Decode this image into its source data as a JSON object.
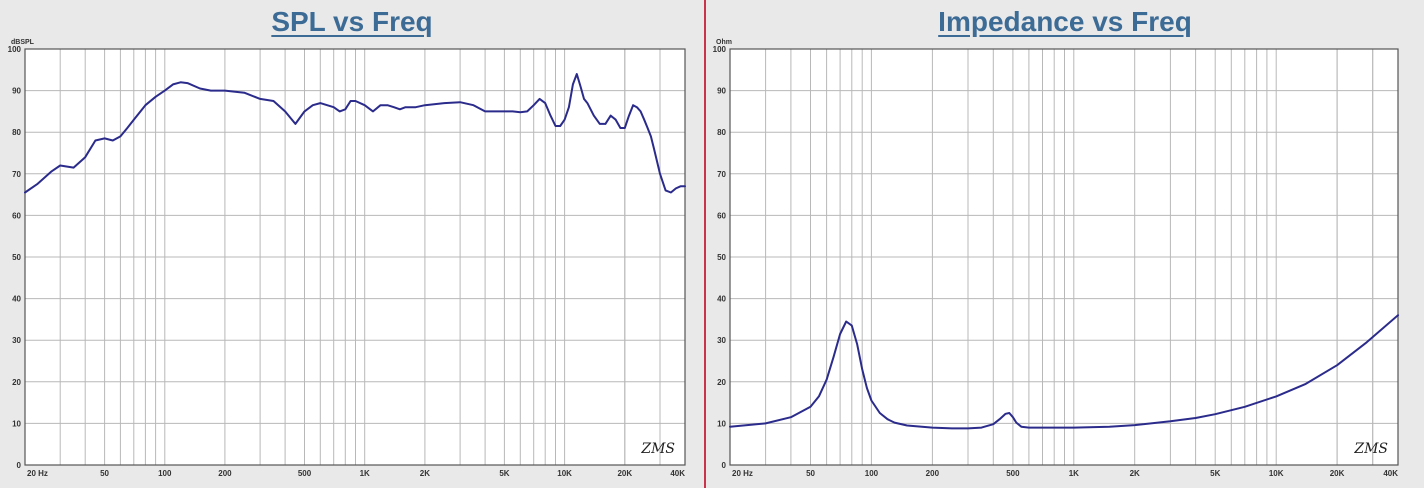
{
  "chart_data": [
    {
      "type": "line",
      "title": "SPL vs Freq",
      "ylabel": "dBSPL",
      "xscale": "log",
      "xlim": [
        20,
        40000
      ],
      "ylim": [
        0,
        100
      ],
      "grid": true,
      "xticklabels": [
        "20 Hz",
        "50",
        "100",
        "200",
        "500",
        "1K",
        "2K",
        "5K",
        "10K",
        "20K",
        "40K"
      ],
      "yticklabels": [
        "0",
        "10",
        "20",
        "30",
        "40",
        "50",
        "60",
        "70",
        "80",
        "90",
        "100"
      ],
      "watermark": "ZMS",
      "color": "#2b2b8c",
      "series": [
        {
          "x": [
            20,
            23,
            27,
            30,
            35,
            40,
            45,
            50,
            55,
            60,
            65,
            70,
            80,
            90,
            100,
            110,
            120,
            130,
            150,
            170,
            200,
            250,
            300,
            350,
            400,
            450,
            500,
            550,
            600,
            700,
            750,
            800,
            850,
            900,
            1000,
            1100,
            1200,
            1300,
            1400,
            1500,
            1600,
            1800,
            2000,
            2500,
            3000,
            3500,
            4000,
            4500,
            5000,
            5500,
            6000,
            6500,
            7000,
            7500,
            8000,
            8500,
            9000,
            9500,
            10000,
            10500,
            11000,
            11500,
            12000,
            12500,
            13000,
            14000,
            15000,
            16000,
            17000,
            18000,
            19000,
            20000,
            21000,
            22000,
            23000,
            24000,
            25000,
            26000,
            27000,
            28000,
            30000,
            32000,
            34000,
            36000,
            38000,
            40000
          ],
          "y": [
            65.5,
            67.5,
            70.5,
            72,
            71.5,
            74,
            78,
            78.5,
            78,
            79,
            81,
            83,
            86.5,
            88.5,
            90,
            91.5,
            92,
            91.8,
            90.5,
            90,
            90,
            89.5,
            88,
            87.5,
            85,
            82,
            85,
            86.5,
            87,
            86,
            85,
            85.5,
            87.5,
            87.5,
            86.5,
            85,
            86.5,
            86.5,
            86,
            85.5,
            86,
            86,
            86.5,
            87,
            87.2,
            86.5,
            85,
            85,
            85,
            85,
            84.8,
            85,
            86.5,
            88,
            87,
            84,
            81.5,
            81.5,
            83,
            86,
            91.5,
            94,
            91,
            88,
            87,
            84,
            82,
            82,
            84,
            83,
            81,
            81,
            84,
            86.5,
            86,
            85,
            83,
            81,
            79,
            76,
            70,
            66,
            65.5,
            66.5,
            67,
            67
          ]
        }
      ]
    },
    {
      "type": "line",
      "title": "Impedance vs Freq",
      "ylabel": "Ohm",
      "xscale": "log",
      "xlim": [
        20,
        40000
      ],
      "ylim": [
        0,
        100
      ],
      "grid": true,
      "xticklabels": [
        "20 Hz",
        "50",
        "100",
        "200",
        "500",
        "1K",
        "2K",
        "5K",
        "10K",
        "20K",
        "40K"
      ],
      "yticklabels": [
        "0",
        "10",
        "20",
        "30",
        "40",
        "50",
        "60",
        "70",
        "80",
        "90",
        "100"
      ],
      "watermark": "ZMS",
      "color": "#2b2b8c",
      "series": [
        {
          "x": [
            20,
            30,
            40,
            50,
            55,
            60,
            65,
            70,
            75,
            80,
            85,
            90,
            95,
            100,
            110,
            120,
            130,
            150,
            200,
            250,
            300,
            350,
            400,
            430,
            460,
            480,
            500,
            520,
            550,
            600,
            700,
            1000,
            1500,
            2000,
            3000,
            4000,
            5000,
            7000,
            10000,
            14000,
            20000,
            28000,
            40000
          ],
          "y": [
            9.2,
            10,
            11.5,
            14,
            16.5,
            20.5,
            26,
            31.5,
            34.5,
            33.5,
            29,
            23,
            18.5,
            15.5,
            12.5,
            11,
            10.2,
            9.5,
            9.0,
            8.8,
            8.8,
            9.0,
            9.8,
            11,
            12.3,
            12.5,
            11.5,
            10.2,
            9.2,
            9.0,
            9.0,
            9.0,
            9.2,
            9.6,
            10.5,
            11.3,
            12.2,
            14,
            16.5,
            19.5,
            24,
            29.5,
            36
          ]
        }
      ]
    }
  ]
}
